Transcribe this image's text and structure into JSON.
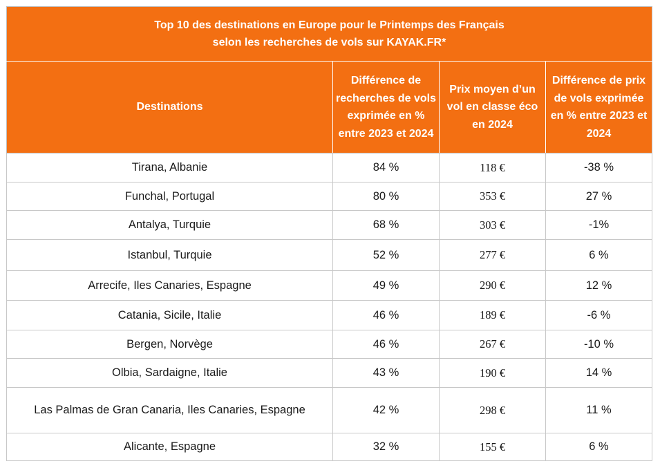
{
  "title": {
    "line1": "Top 10 des destinations en Europe pour le Printemps des Français",
    "line2": "selon les recherches de vols sur KAYAK.FR*"
  },
  "headers": [
    "Destinations",
    "Différence de recherches de vols exprimée en % entre 2023 et 2024",
    "Prix moyen d’un vol en classe éco en 2024",
    "Différence de prix de vols exprimée en % entre 2023 et 2024"
  ],
  "rows": [
    {
      "destination": "Tirana, Albanie",
      "search_diff": "84 %",
      "avg_price": "118 €",
      "price_diff": "-38 %"
    },
    {
      "destination": "Funchal, Portugal",
      "search_diff": "80 %",
      "avg_price": "353 €",
      "price_diff": "27 %"
    },
    {
      "destination": "Antalya, Turquie",
      "search_diff": "68 %",
      "avg_price": "303 €",
      "price_diff": "-1%"
    },
    {
      "destination": "Istanbul, Turquie",
      "search_diff": "52 %",
      "avg_price": "277 €",
      "price_diff": "6 %"
    },
    {
      "destination": "Arrecife, Iles Canaries, Espagne",
      "search_diff": "49 %",
      "avg_price": "290 €",
      "price_diff": "12 %"
    },
    {
      "destination": "Catania, Sicile, Italie",
      "search_diff": "46 %",
      "avg_price": "189 €",
      "price_diff": "-6 %"
    },
    {
      "destination": "Bergen, Norvège",
      "search_diff": "46 %",
      "avg_price": "267 €",
      "price_diff": "-10 %"
    },
    {
      "destination": "Olbia, Sardaigne, Italie",
      "search_diff": "43 %",
      "avg_price": "190 €",
      "price_diff": "14 %"
    },
    {
      "destination": "Las Palmas de Gran Canaria, Iles Canaries, Espagne",
      "search_diff": "42 %",
      "avg_price": "298 €",
      "price_diff": "11 %"
    },
    {
      "destination": "Alicante, Espagne",
      "search_diff": "32 %",
      "avg_price": "155 €",
      "price_diff": "6 %"
    }
  ],
  "colors": {
    "header_bg": "#f36f12",
    "header_text": "#ffffff",
    "body_text": "#1a1a1a",
    "border": "#bdbdbd"
  }
}
